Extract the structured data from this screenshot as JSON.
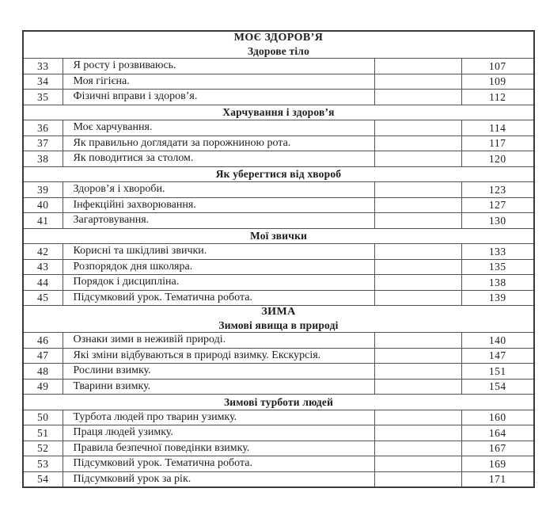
{
  "table": {
    "rows": [
      {
        "kind": "section2",
        "line1": "МОЄ ЗДОРОВ’Я",
        "line2": "Здорове тіло"
      },
      {
        "kind": "entry",
        "num": "33",
        "title": "Я росту і розвиваюсь.",
        "page": "107"
      },
      {
        "kind": "entry",
        "num": "34",
        "title": "Моя гігієна.",
        "page": "109"
      },
      {
        "kind": "entry",
        "num": "35",
        "title": "Фізичні вправи і здоров’я.",
        "page": "112"
      },
      {
        "kind": "section",
        "line1": "Харчування і здоров’я"
      },
      {
        "kind": "entry",
        "num": "36",
        "title": "Моє харчування.",
        "page": "114"
      },
      {
        "kind": "entry",
        "num": "37",
        "title": "Як правильно доглядати за порожниною рота.",
        "page": "117"
      },
      {
        "kind": "entry",
        "num": "38",
        "title": "Як поводитися за столом.",
        "page": "120"
      },
      {
        "kind": "section",
        "line1": "Як уберегтися від хвороб"
      },
      {
        "kind": "entry",
        "num": "39",
        "title": "Здоров’я і хвороби.",
        "page": "123"
      },
      {
        "kind": "entry",
        "num": "40",
        "title": "Інфекційні захворювання.",
        "page": "127"
      },
      {
        "kind": "entry",
        "num": "41",
        "title": "Загартовування.",
        "page": "130"
      },
      {
        "kind": "section",
        "line1": "Мої звички"
      },
      {
        "kind": "entry",
        "num": "42",
        "title": "Корисні та шкідливі звички.",
        "page": "133"
      },
      {
        "kind": "entry",
        "num": "43",
        "title": "Розпорядок дня школяра.",
        "page": "135"
      },
      {
        "kind": "entry",
        "num": "44",
        "title": "Порядок і дисципліна.",
        "page": "138"
      },
      {
        "kind": "entry",
        "num": "45",
        "title": "Підсумковий урок. Тематична робота.",
        "page": "139"
      },
      {
        "kind": "section2",
        "line1": "ЗИМА",
        "line2": "Зимові явища в природі"
      },
      {
        "kind": "entry",
        "num": "46",
        "title": "Ознаки зими в неживій природі.",
        "page": "140"
      },
      {
        "kind": "entry",
        "num": "47",
        "title": "Які зміни відбуваються в природі взимку. Екскурсія.",
        "page": "147"
      },
      {
        "kind": "entry",
        "num": "48",
        "title": "Рослини взимку.",
        "page": "151"
      },
      {
        "kind": "entry",
        "num": "49",
        "title": "Тварини взимку.",
        "page": "154"
      },
      {
        "kind": "section",
        "line1": "Зимові турботи людей"
      },
      {
        "kind": "entry",
        "num": "50",
        "title": "Турбота людей про тварин узимку.",
        "page": "160"
      },
      {
        "kind": "entry",
        "num": "51",
        "title": "Праця людей узимку.",
        "page": "164"
      },
      {
        "kind": "entry",
        "num": "52",
        "title": "Правила безпечної поведінки взимку.",
        "page": "167"
      },
      {
        "kind": "entry",
        "num": "53",
        "title": "Підсумковий урок. Тематична робота.",
        "page": "169"
      },
      {
        "kind": "entry",
        "num": "54",
        "title": "Підсумковий урок за рік.",
        "page": "171"
      }
    ]
  }
}
